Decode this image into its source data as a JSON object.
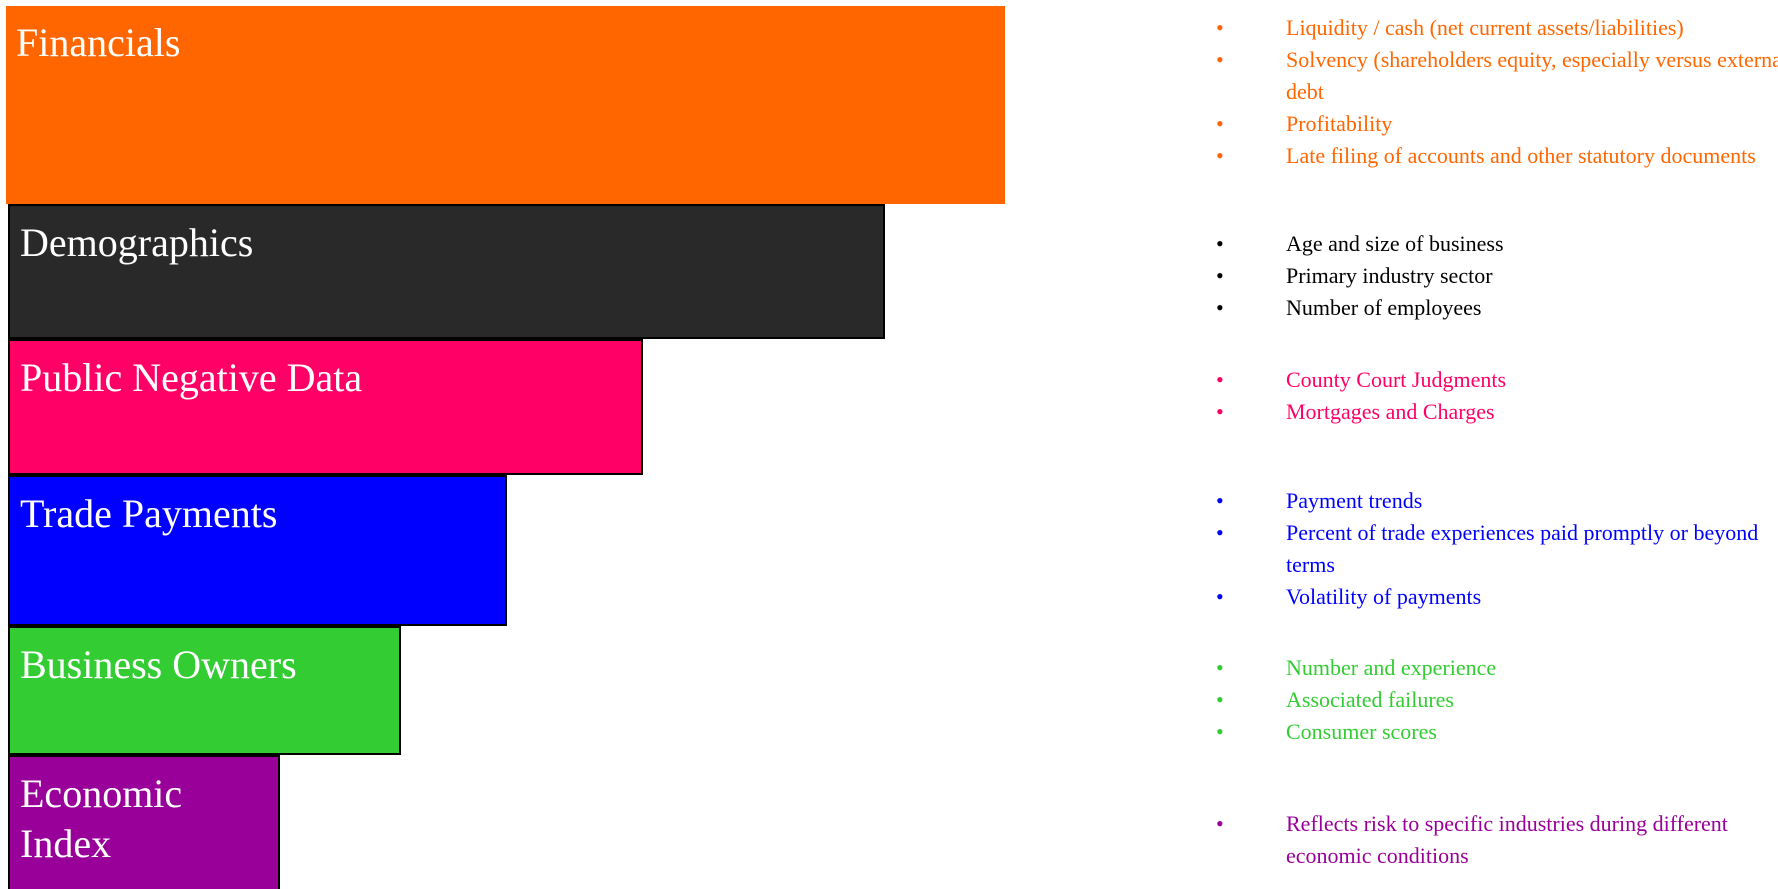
{
  "bars": [
    {
      "label": "Financials",
      "color": "#ff6600"
    },
    {
      "label": "Demographics",
      "color": "#292929"
    },
    {
      "label": "Public Negative Data",
      "color": "#ff0066"
    },
    {
      "label": "Trade Payments",
      "color": "#0000ff"
    },
    {
      "label": "Business Owners",
      "color": "#33cc33"
    },
    {
      "label": "Economic Index",
      "color": "#990099"
    }
  ],
  "groups": [
    {
      "color": "#ff6600",
      "items": [
        "Liquidity / cash (net current assets/liabilities)",
        "Solvency (shareholders equity, especially versus external debt",
        "Profitability",
        "Late filing of accounts and other statutory documents"
      ]
    },
    {
      "color": "#000000",
      "items": [
        "Age and size of business",
        "Primary industry sector",
        "Number of employees"
      ]
    },
    {
      "color": "#ff0066",
      "items": [
        "County Court Judgments",
        "Mortgages and Charges"
      ]
    },
    {
      "color": "#0000ff",
      "items": [
        "Payment trends",
        "Percent of trade experiences paid promptly or beyond terms",
        "Volatility of payments"
      ]
    },
    {
      "color": "#33cc33",
      "items": [
        "Number and experience",
        "Associated failures",
        "Consumer scores"
      ]
    },
    {
      "color": "#990099",
      "items": [
        "Reflects risk to specific industries during different economic conditions"
      ]
    }
  ],
  "bullet_glyph": "•"
}
